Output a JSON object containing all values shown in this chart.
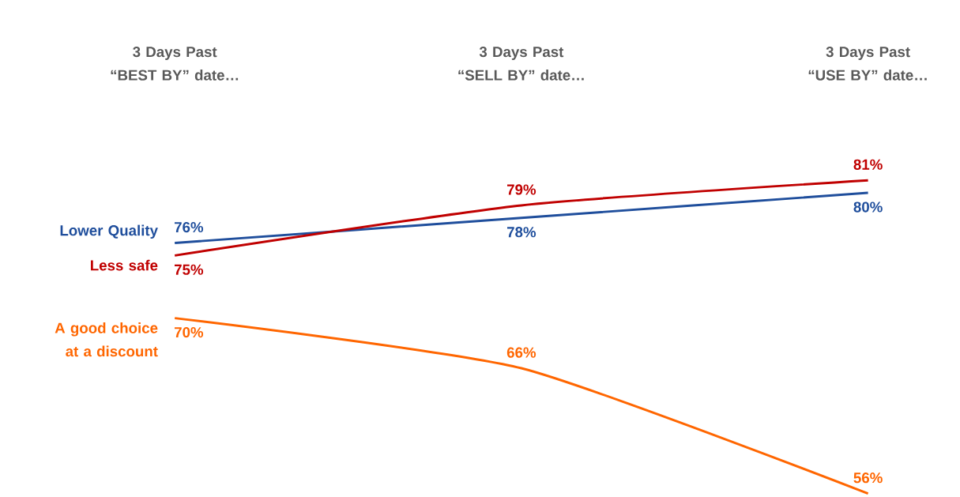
{
  "chart_data": {
    "type": "line",
    "categories": [
      "3 Days Past “BEST BY” date…",
      "3 Days Past “SELL BY” date…",
      "3 Days Past “USE BY” date…"
    ],
    "series": [
      {
        "name": "Lower Quality",
        "color": "#1f4e9c",
        "values": [
          76,
          78,
          80
        ],
        "value_labels": [
          "76%",
          "78%",
          "80%"
        ]
      },
      {
        "name": "Less safe",
        "color": "#c00000",
        "values": [
          75,
          79,
          81
        ],
        "value_labels": [
          "75%",
          "79%",
          "81%"
        ]
      },
      {
        "name": "A good choice at a discount",
        "color": "#ff6600",
        "values": [
          70,
          66,
          56
        ],
        "value_labels": [
          "70%",
          "66%",
          "56%"
        ]
      }
    ],
    "marker": "none",
    "line_style": "solid"
  }
}
